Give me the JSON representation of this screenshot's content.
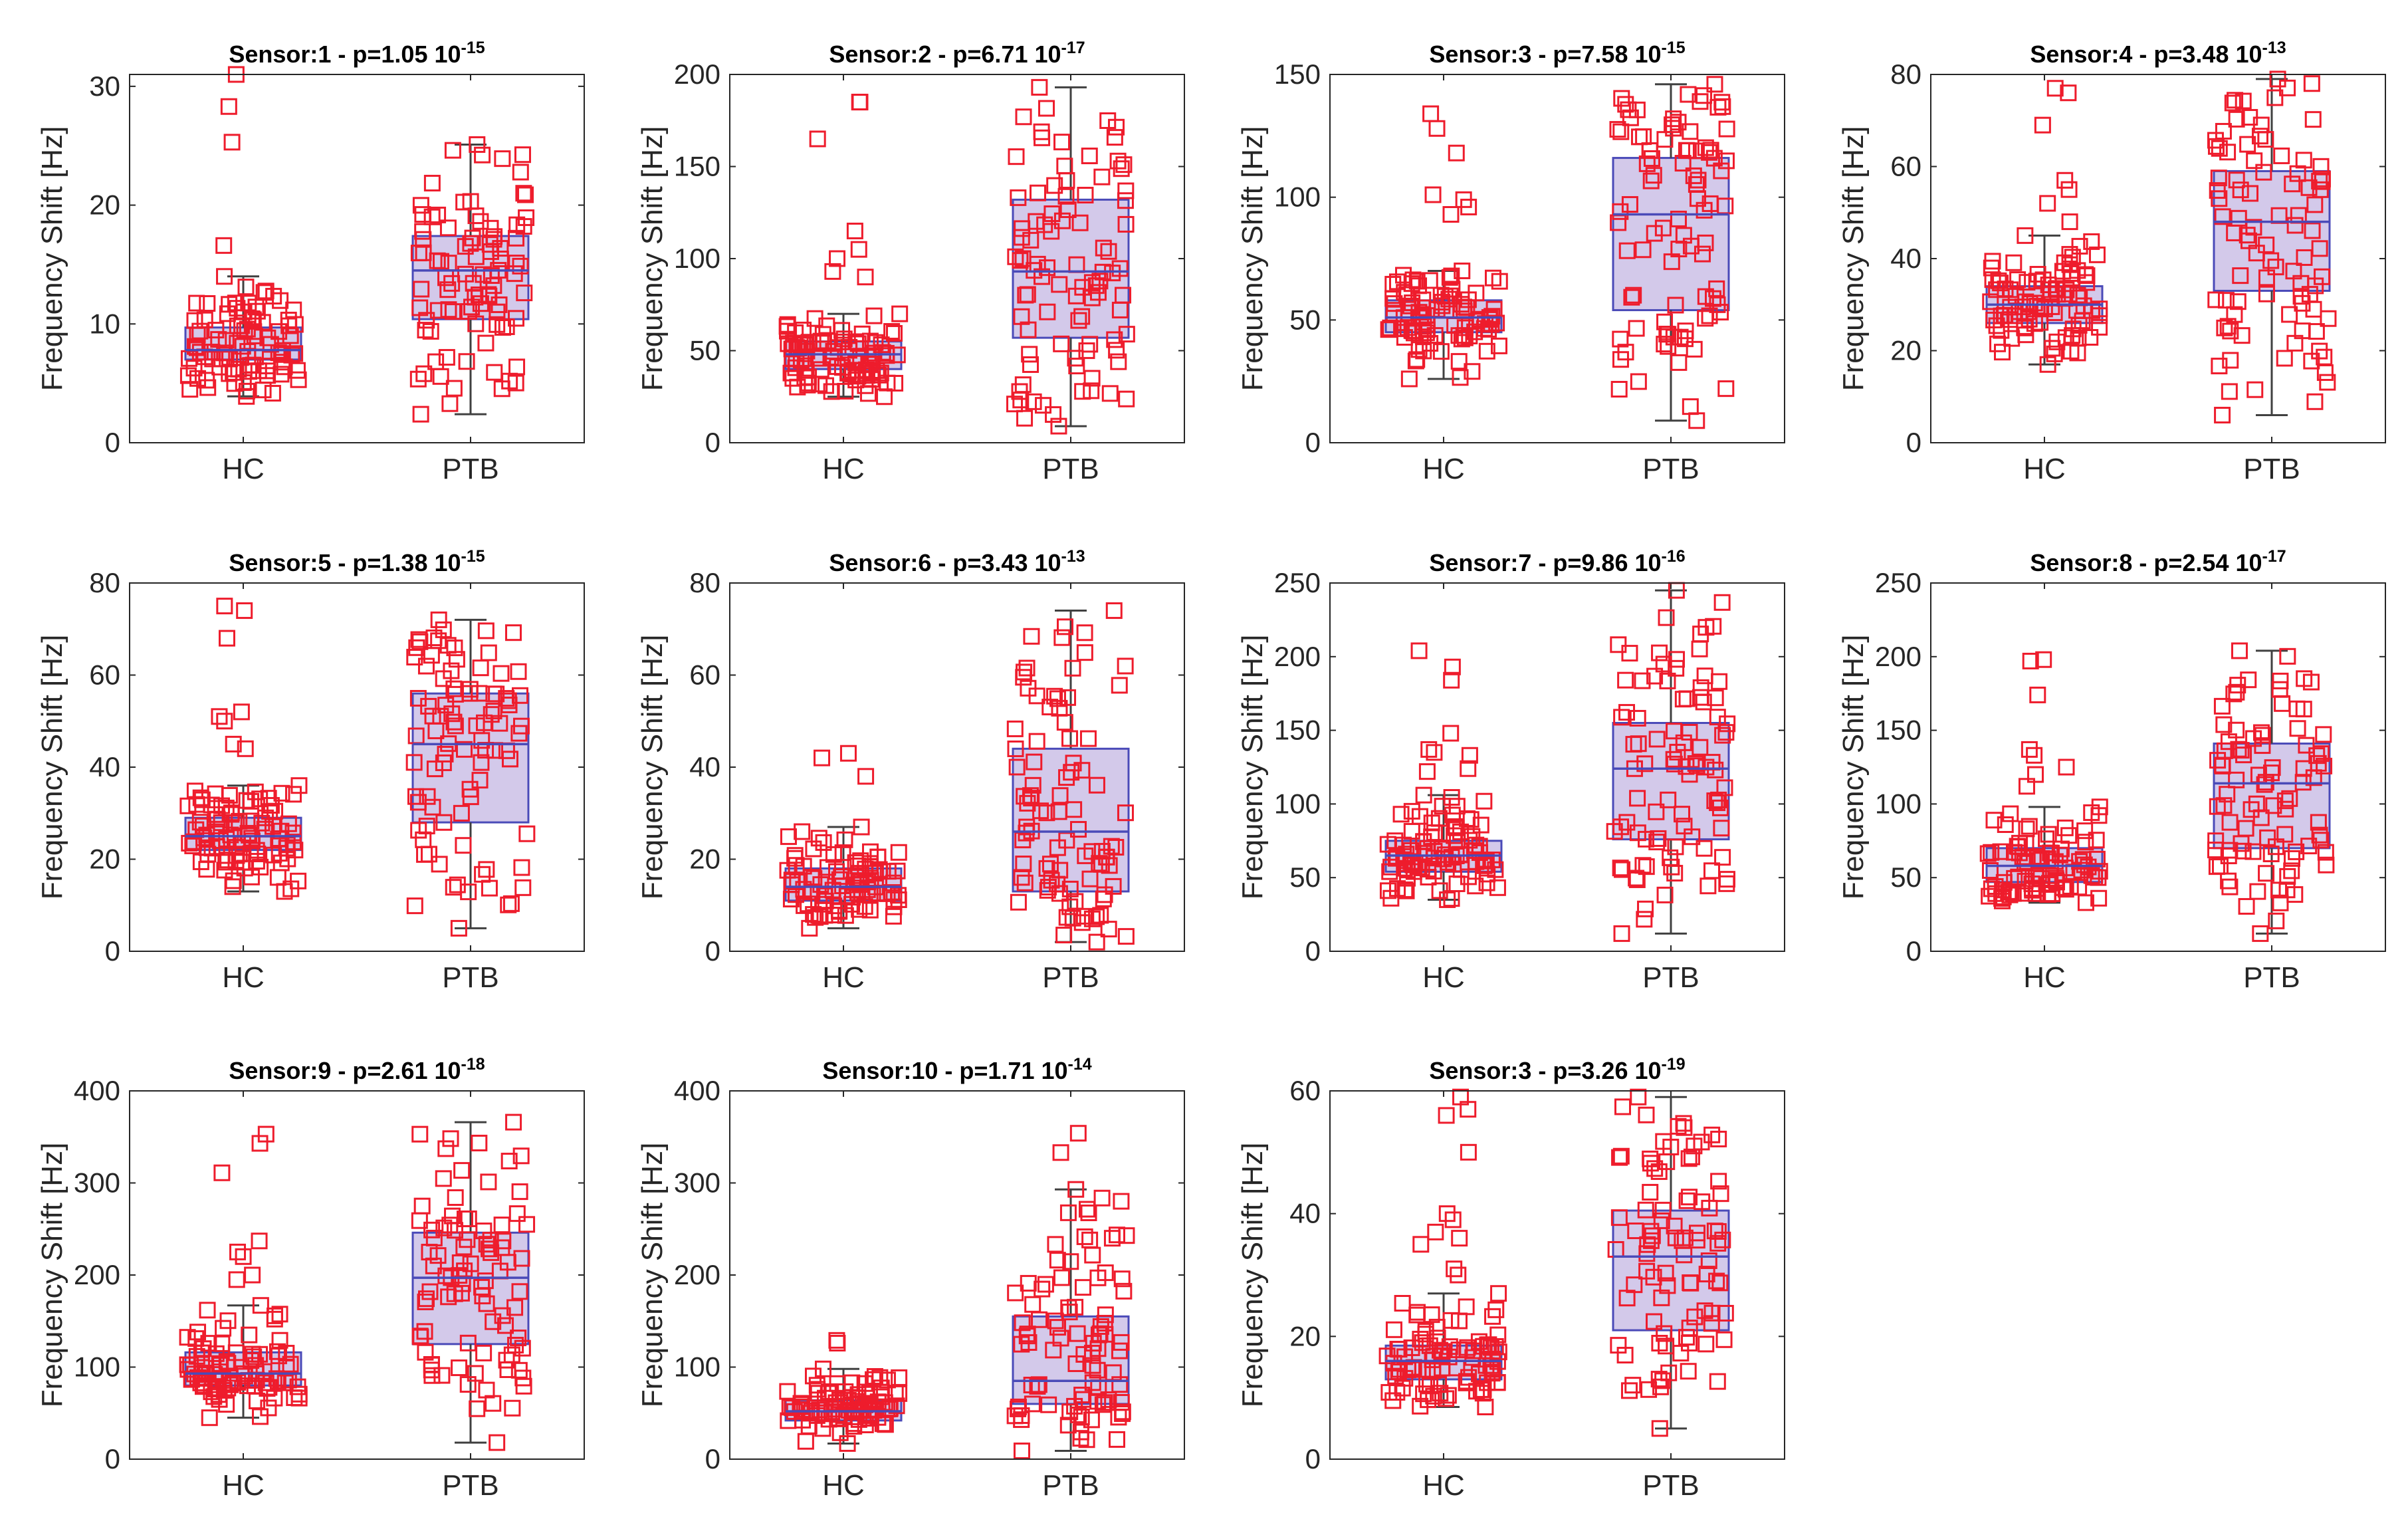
{
  "figure": {
    "colors": {
      "box_fill": "#d3c9ea",
      "box_edge": "#4a4ab8",
      "whisker": "#404040",
      "points": "#ee1c2c",
      "axis": "#262626"
    }
  },
  "chart_data": [
    {
      "type": "box",
      "title": "Sensor:1 - p=1.05 10",
      "p_exponent": "-15",
      "ylabel": "Frequency Shift [Hz]",
      "categories": [
        "HC",
        "PTB"
      ],
      "ylim": [
        0,
        31
      ],
      "yticks": [
        0,
        10,
        20,
        30
      ],
      "groups": [
        {
          "name": "HC",
          "whisker_low": 3.9,
          "q1": 7.0,
          "median": 7.8,
          "q3": 9.7,
          "whisker_high": 14.0,
          "outliers": [
            31.0,
            28.3,
            25.3,
            16.6
          ]
        },
        {
          "name": "PTB",
          "whisker_low": 2.4,
          "q1": 10.4,
          "median": 14.5,
          "q3": 17.4,
          "whisker_high": 25.1,
          "outliers": []
        }
      ]
    },
    {
      "type": "box",
      "title": "Sensor:2 - p=6.71 10",
      "p_exponent": "-17",
      "ylabel": "Frequency Shift [Hz]",
      "categories": [
        "HC",
        "PTB"
      ],
      "ylim": [
        0,
        200
      ],
      "yticks": [
        0,
        50,
        100,
        150,
        200
      ],
      "groups": [
        {
          "name": "HC",
          "whisker_low": 25,
          "q1": 40,
          "median": 48,
          "q3": 55,
          "whisker_high": 70,
          "outliers": [
            185,
            185,
            165,
            115,
            105,
            100,
            93,
            90
          ]
        },
        {
          "name": "PTB",
          "whisker_low": 9,
          "q1": 57,
          "median": 93,
          "q3": 132,
          "whisker_high": 193,
          "outliers": []
        }
      ]
    },
    {
      "type": "box",
      "title": "Sensor:3 - p=7.58 10",
      "p_exponent": "-15",
      "ylabel": "Frequency Shift [Hz]",
      "categories": [
        "HC",
        "PTB"
      ],
      "ylim": [
        0,
        150
      ],
      "yticks": [
        0,
        50,
        100,
        150
      ],
      "groups": [
        {
          "name": "HC",
          "whisker_low": 26,
          "q1": 45,
          "median": 51,
          "q3": 58,
          "whisker_high": 70,
          "outliers": [
            134,
            128,
            118,
            101,
            99,
            96,
            93
          ]
        },
        {
          "name": "PTB",
          "whisker_low": 9,
          "q1": 54,
          "median": 93,
          "q3": 116,
          "whisker_high": 146,
          "outliers": []
        }
      ]
    },
    {
      "type": "box",
      "title": "Sensor:4 - p=3.48 10",
      "p_exponent": "-13",
      "ylabel": "Frequency Shift [Hz]",
      "categories": [
        "HC",
        "PTB"
      ],
      "ylim": [
        0,
        80
      ],
      "yticks": [
        0,
        20,
        40,
        60,
        80
      ],
      "groups": [
        {
          "name": "HC",
          "whisker_low": 17,
          "q1": 26,
          "median": 30,
          "q3": 34,
          "whisker_high": 45,
          "outliers": [
            77,
            76,
            69,
            57,
            55,
            52,
            48
          ]
        },
        {
          "name": "PTB",
          "whisker_low": 6,
          "q1": 33,
          "median": 48,
          "q3": 59,
          "whisker_high": 79,
          "outliers": []
        }
      ]
    },
    {
      "type": "box",
      "title": "Sensor:5 - p=1.38 10",
      "p_exponent": "-15",
      "ylabel": "Frequency Shift [Hz]",
      "categories": [
        "HC",
        "PTB"
      ],
      "ylim": [
        0,
        80
      ],
      "yticks": [
        0,
        20,
        40,
        60,
        80
      ],
      "groups": [
        {
          "name": "HC",
          "whisker_low": 13,
          "q1": 22,
          "median": 25,
          "q3": 29,
          "whisker_high": 36,
          "outliers": [
            75,
            74,
            68,
            52,
            51,
            50,
            45,
            44
          ]
        },
        {
          "name": "PTB",
          "whisker_low": 5,
          "q1": 28,
          "median": 45,
          "q3": 56,
          "whisker_high": 72,
          "outliers": []
        }
      ]
    },
    {
      "type": "box",
      "title": "Sensor:6 - p=3.43 10",
      "p_exponent": "-13",
      "ylabel": "Frequency Shift [Hz]",
      "categories": [
        "HC",
        "PTB"
      ],
      "ylim": [
        0,
        80
      ],
      "yticks": [
        0,
        20,
        40,
        60,
        80
      ],
      "groups": [
        {
          "name": "HC",
          "whisker_low": 5,
          "q1": 11,
          "median": 14,
          "q3": 18,
          "whisker_high": 27,
          "outliers": [
            43,
            42,
            38
          ]
        },
        {
          "name": "PTB",
          "whisker_low": 2,
          "q1": 13,
          "median": 26,
          "q3": 44,
          "whisker_high": 74,
          "outliers": []
        }
      ]
    },
    {
      "type": "box",
      "title": "Sensor:7 - p=9.86 10",
      "p_exponent": "-16",
      "ylabel": "Frequency Shift [Hz]",
      "categories": [
        "HC",
        "PTB"
      ],
      "ylim": [
        0,
        250
      ],
      "yticks": [
        0,
        50,
        100,
        150,
        200,
        250
      ],
      "groups": [
        {
          "name": "HC",
          "whisker_low": 35,
          "q1": 54,
          "median": 65,
          "q3": 75,
          "whisker_high": 106,
          "outliers": [
            204,
            193,
            184,
            148,
            137,
            135,
            133,
            124,
            122
          ]
        },
        {
          "name": "PTB",
          "whisker_low": 12,
          "q1": 76,
          "median": 124,
          "q3": 155,
          "whisker_high": 245,
          "outliers": []
        }
      ]
    },
    {
      "type": "box",
      "title": "Sensor:8 - p=2.54 10",
      "p_exponent": "-17",
      "ylabel": "Frequency Shift [Hz]",
      "categories": [
        "HC",
        "PTB"
      ],
      "ylim": [
        0,
        250
      ],
      "yticks": [
        0,
        50,
        100,
        150,
        200,
        250
      ],
      "groups": [
        {
          "name": "HC",
          "whisker_low": 33,
          "q1": 47,
          "median": 58,
          "q3": 70,
          "whisker_high": 98,
          "outliers": [
            198,
            197,
            174,
            137,
            133,
            125,
            120,
            112
          ]
        },
        {
          "name": "PTB",
          "whisker_low": 12,
          "q1": 70,
          "median": 114,
          "q3": 141,
          "whisker_high": 204,
          "outliers": []
        }
      ]
    },
    {
      "type": "box",
      "title": "Sensor:9 - p=2.61 10",
      "p_exponent": "-18",
      "ylabel": "Frequency Shift [Hz]",
      "categories": [
        "HC",
        "PTB"
      ],
      "ylim": [
        0,
        400
      ],
      "yticks": [
        0,
        100,
        200,
        300,
        400
      ],
      "groups": [
        {
          "name": "HC",
          "whisker_low": 45,
          "q1": 80,
          "median": 93,
          "q3": 116,
          "whisker_high": 167,
          "outliers": [
            353,
            343,
            311,
            237,
            225,
            220,
            200,
            195
          ]
        },
        {
          "name": "PTB",
          "whisker_low": 18,
          "q1": 125,
          "median": 197,
          "q3": 246,
          "whisker_high": 366,
          "outliers": []
        }
      ]
    },
    {
      "type": "box",
      "title": "Sensor:10 - p=1.71 10",
      "p_exponent": "-14",
      "ylabel": "Frequency Shift [Hz]",
      "categories": [
        "HC",
        "PTB"
      ],
      "ylim": [
        0,
        400
      ],
      "yticks": [
        0,
        100,
        200,
        300,
        400
      ],
      "groups": [
        {
          "name": "HC",
          "whisker_low": 17,
          "q1": 42,
          "median": 52,
          "q3": 64,
          "whisker_high": 98,
          "outliers": [
            129,
            126
          ]
        },
        {
          "name": "PTB",
          "whisker_low": 9,
          "q1": 60,
          "median": 85,
          "q3": 155,
          "whisker_high": 293,
          "outliers": [
            354,
            333
          ]
        }
      ]
    },
    {
      "type": "box",
      "title": "Sensor:3 - p=3.26 10",
      "p_exponent": "-19",
      "ylabel": "Frequency Shift [Hz]",
      "categories": [
        "HC",
        "PTB"
      ],
      "ylim": [
        0,
        60
      ],
      "yticks": [
        0,
        20,
        40,
        60
      ],
      "groups": [
        {
          "name": "HC",
          "whisker_low": 8.5,
          "q1": 13,
          "median": 16,
          "q3": 18.5,
          "whisker_high": 27,
          "outliers": [
            59,
            57,
            56,
            50,
            40,
            39,
            37,
            36,
            35,
            31,
            30
          ]
        },
        {
          "name": "PTB",
          "whisker_low": 5,
          "q1": 21,
          "median": 33,
          "q3": 40.5,
          "whisker_high": 59,
          "outliers": []
        }
      ]
    }
  ]
}
